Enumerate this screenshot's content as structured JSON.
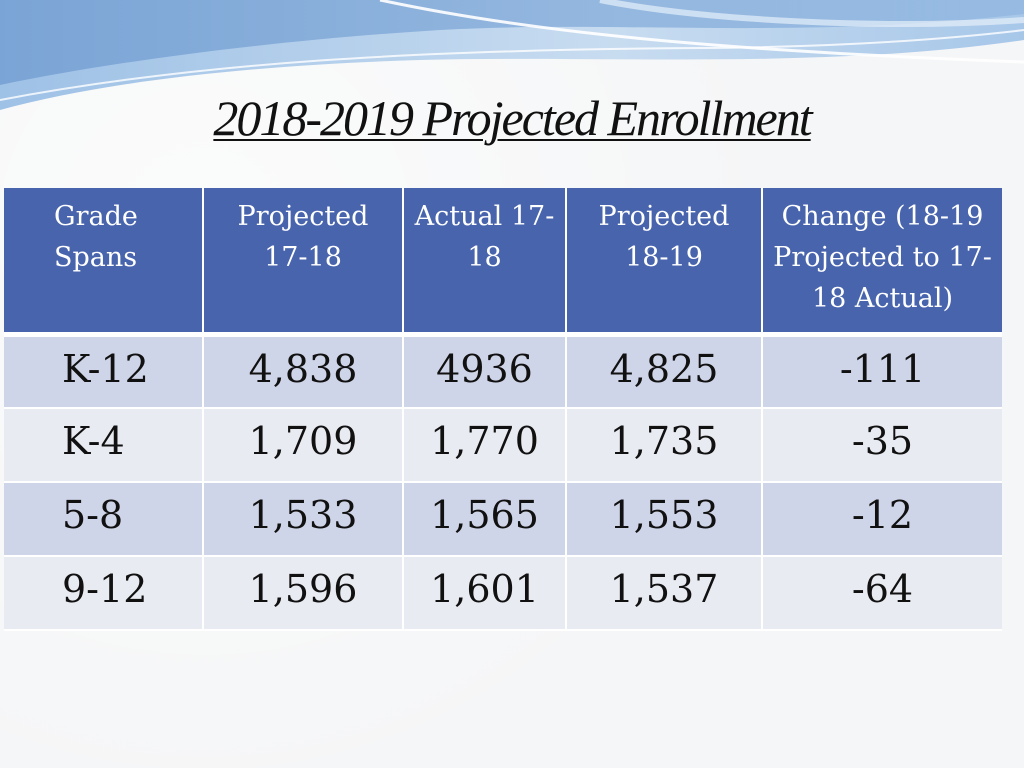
{
  "title": "2018-2019 Projected Enrollment",
  "colors": {
    "header_bg": "#4864ad",
    "row_dark": "#cfd5e8",
    "row_light": "#e9ebf3",
    "wave_light": "#b9d3ec",
    "wave_dark": "#7fa8d6"
  },
  "table": {
    "headers": [
      "Grade Spans",
      "Projected 17-18",
      "Actual 17-18",
      "Projected 18-19",
      "Change (18-19 Projected to 17-18 Actual)"
    ],
    "rows": [
      [
        "K-12",
        "4,838",
        "4936",
        "4,825",
        "-111"
      ],
      [
        "K-4",
        "1,709",
        "1,770",
        "1,735",
        "-35"
      ],
      [
        "5-8",
        "1,533",
        "1,565",
        "1,553",
        "-12"
      ],
      [
        "9-12",
        "1,596",
        "1,601",
        "1,537",
        "-64"
      ]
    ]
  }
}
